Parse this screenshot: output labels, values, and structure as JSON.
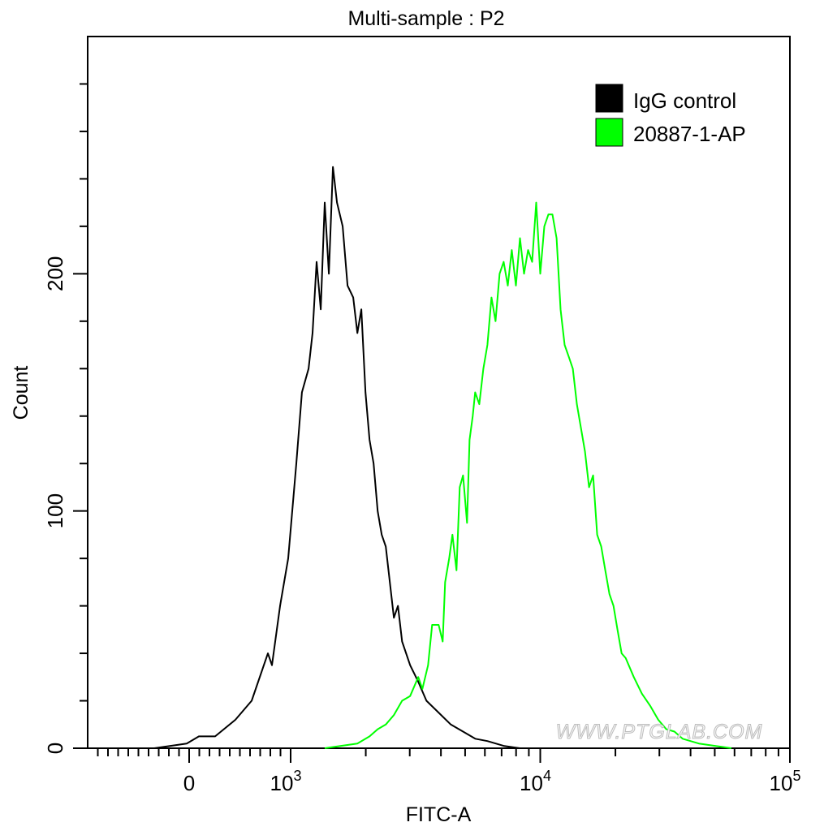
{
  "chart_data": {
    "type": "line",
    "title": "Multi-sample : P2",
    "xlabel": "FITC-A",
    "ylabel": "Count",
    "x_scale": "biexponential (linear near 0, log above 10^3)",
    "xlim": [
      -1000,
      100000
    ],
    "ylim": [
      0,
      300
    ],
    "x_ticks": [
      {
        "value": 0,
        "base": "0",
        "exp": ""
      },
      {
        "value": 1000,
        "base": "10",
        "exp": "3"
      },
      {
        "value": 10000,
        "base": "10",
        "exp": "4"
      },
      {
        "value": 100000,
        "base": "10",
        "exp": "5"
      }
    ],
    "y_ticks": [
      {
        "value": 0,
        "label": "0"
      },
      {
        "value": 100,
        "label": "100"
      },
      {
        "value": 200,
        "label": "200"
      }
    ],
    "grid": false,
    "legend_position": "top-right",
    "watermark": "WWW.PTGLAB.COM",
    "series": [
      {
        "name": "IgG control",
        "color": "#000000",
        "points": [
          [
            -344,
            0
          ],
          [
            -184,
            1
          ],
          [
            -24,
            2
          ],
          [
            96,
            5
          ],
          [
            256,
            5
          ],
          [
            456,
            12
          ],
          [
            616,
            20
          ],
          [
            776,
            40
          ],
          [
            816,
            35
          ],
          [
            896,
            60
          ],
          [
            976,
            80
          ],
          [
            1054,
            120
          ],
          [
            1110,
            150
          ],
          [
            1180,
            160
          ],
          [
            1224,
            175
          ],
          [
            1271,
            205
          ],
          [
            1320,
            185
          ],
          [
            1370,
            230
          ],
          [
            1423,
            200
          ],
          [
            1477,
            245
          ],
          [
            1534,
            230
          ],
          [
            1616,
            220
          ],
          [
            1690,
            195
          ],
          [
            1781,
            190
          ],
          [
            1850,
            175
          ],
          [
            1920,
            185
          ],
          [
            1994,
            150
          ],
          [
            2070,
            130
          ],
          [
            2149,
            120
          ],
          [
            2232,
            100
          ],
          [
            2317,
            90
          ],
          [
            2405,
            85
          ],
          [
            2497,
            70
          ],
          [
            2592,
            55
          ],
          [
            2692,
            60
          ],
          [
            2795,
            45
          ],
          [
            3012,
            35
          ],
          [
            3246,
            28
          ],
          [
            3499,
            20
          ],
          [
            3915,
            15
          ],
          [
            4382,
            10
          ],
          [
            4905,
            7
          ],
          [
            5489,
            4
          ],
          [
            6142,
            3
          ],
          [
            7135,
            1
          ],
          [
            8291,
            0
          ]
        ]
      },
      {
        "name": "20887-1-AP",
        "color": "#00ff00",
        "points": [
          [
            1370,
            0
          ],
          [
            1592,
            1
          ],
          [
            1850,
            2
          ],
          [
            2070,
            5
          ],
          [
            2232,
            8
          ],
          [
            2405,
            10
          ],
          [
            2592,
            14
          ],
          [
            2795,
            20
          ],
          [
            3012,
            22
          ],
          [
            3246,
            30
          ],
          [
            3371,
            25
          ],
          [
            3552,
            35
          ],
          [
            3688,
            52
          ],
          [
            3915,
            52
          ],
          [
            4065,
            45
          ],
          [
            4157,
            70
          ],
          [
            4316,
            80
          ],
          [
            4447,
            90
          ],
          [
            4617,
            75
          ],
          [
            4758,
            110
          ],
          [
            4905,
            115
          ],
          [
            5091,
            95
          ],
          [
            5207,
            130
          ],
          [
            5365,
            140
          ],
          [
            5487,
            150
          ],
          [
            5697,
            145
          ],
          [
            5916,
            160
          ],
          [
            6142,
            170
          ],
          [
            6377,
            190
          ],
          [
            6620,
            180
          ],
          [
            6874,
            200
          ],
          [
            7135,
            205
          ],
          [
            7409,
            195
          ],
          [
            7691,
            210
          ],
          [
            7986,
            195
          ],
          [
            8291,
            215
          ],
          [
            8609,
            200
          ],
          [
            8937,
            210
          ],
          [
            9277,
            205
          ],
          [
            9632,
            230
          ],
          [
            10000,
            200
          ],
          [
            10383,
            220
          ],
          [
            10779,
            225
          ],
          [
            11192,
            225
          ],
          [
            11620,
            215
          ],
          [
            12062,
            185
          ],
          [
            12523,
            170
          ],
          [
            13002,
            165
          ],
          [
            13500,
            160
          ],
          [
            14016,
            145
          ],
          [
            14553,
            135
          ],
          [
            15110,
            125
          ],
          [
            15683,
            110
          ],
          [
            16283,
            115
          ],
          [
            16904,
            90
          ],
          [
            17554,
            85
          ],
          [
            18223,
            75
          ],
          [
            18922,
            65
          ],
          [
            19647,
            60
          ],
          [
            20389,
            50
          ],
          [
            21171,
            40
          ],
          [
            21980,
            38
          ],
          [
            23696,
            30
          ],
          [
            25545,
            23
          ],
          [
            27530,
            18
          ],
          [
            29680,
            12
          ],
          [
            31990,
            8
          ],
          [
            34480,
            7
          ],
          [
            37150,
            4
          ],
          [
            43180,
            2
          ],
          [
            50150,
            1
          ],
          [
            58300,
            0
          ]
        ]
      }
    ]
  }
}
